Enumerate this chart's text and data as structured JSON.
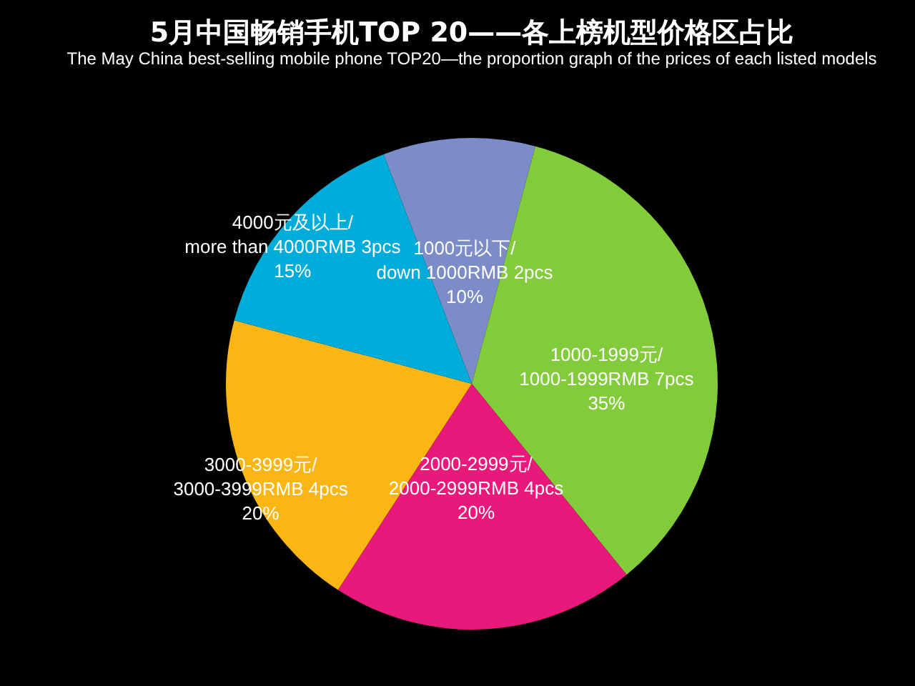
{
  "chart_data": {
    "type": "pie",
    "title": "5月中国畅销手机TOP 20——各上榜机型价格区占比",
    "subtitle": "The May China best-selling mobile phone TOP20—the proportion graph of the prices of each listed models",
    "categories": [
      "1000元以下/\ndown 1000RMB 2pcs",
      "1000-1999元/\n1000-1999RMB  7pcs",
      "2000-2999元/\n2000-2999RMB  4pcs",
      "3000-3999元/\n3000-3999RMB  4pcs",
      "4000元及以上/\nmore than 4000RMB  3pcs"
    ],
    "values": [
      10,
      35,
      20,
      20,
      15
    ],
    "colors": [
      "#7b8cc9",
      "#82cc3c",
      "#e8197a",
      "#fbb614",
      "#00acd9"
    ],
    "value_labels": [
      "10%",
      "35%",
      "20%",
      "20%",
      "15%"
    ]
  }
}
